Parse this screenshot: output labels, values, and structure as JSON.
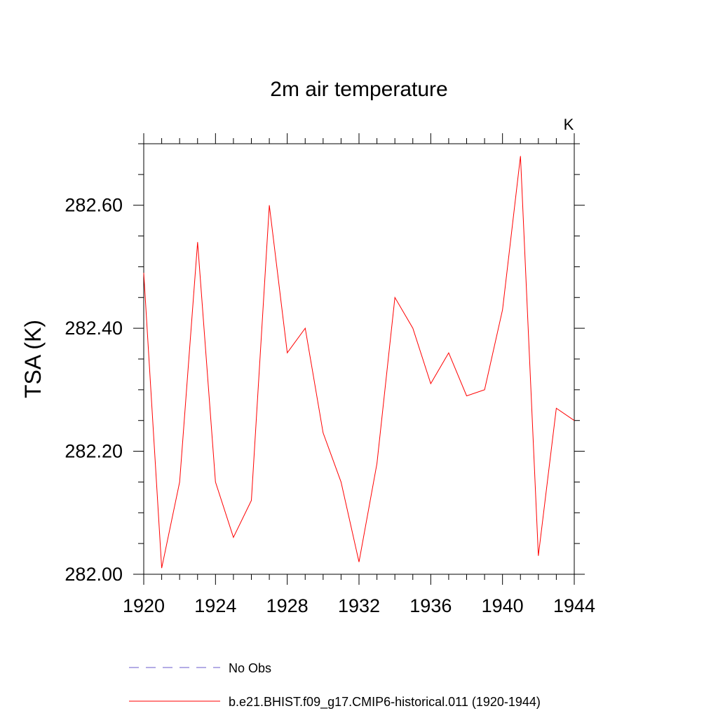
{
  "chart_data": {
    "type": "line",
    "title": "2m air temperature",
    "units": "K",
    "ylabel": "TSA  (K)",
    "xlabel": "",
    "xlim": [
      1920,
      1944
    ],
    "ylim": [
      282.0,
      282.7
    ],
    "x_ticks": [
      "1920",
      "1924",
      "1928",
      "1932",
      "1936",
      "1940",
      "1944"
    ],
    "y_ticks": [
      "282.00",
      "282.20",
      "282.40",
      "282.60"
    ],
    "grid": false,
    "legend_position": "bottom",
    "series": [
      {
        "name": "No Obs",
        "color": "#6a5acd",
        "style": "dashed",
        "x": [],
        "values": []
      },
      {
        "name": "b.e21.BHIST.f09_g17.CMIP6-historical.011 (1920-1944)",
        "color": "#ff0000",
        "style": "solid",
        "x": [
          1920,
          1921,
          1922,
          1923,
          1924,
          1925,
          1926,
          1927,
          1928,
          1929,
          1930,
          1931,
          1932,
          1933,
          1934,
          1935,
          1936,
          1937,
          1938,
          1939,
          1940,
          1941,
          1942,
          1943,
          1944
        ],
        "values": [
          282.49,
          282.01,
          282.15,
          282.54,
          282.15,
          282.06,
          282.12,
          282.6,
          282.36,
          282.4,
          282.23,
          282.15,
          282.02,
          282.18,
          282.45,
          282.4,
          282.31,
          282.36,
          282.29,
          282.3,
          282.43,
          282.68,
          282.03,
          282.27,
          282.25
        ]
      }
    ]
  }
}
